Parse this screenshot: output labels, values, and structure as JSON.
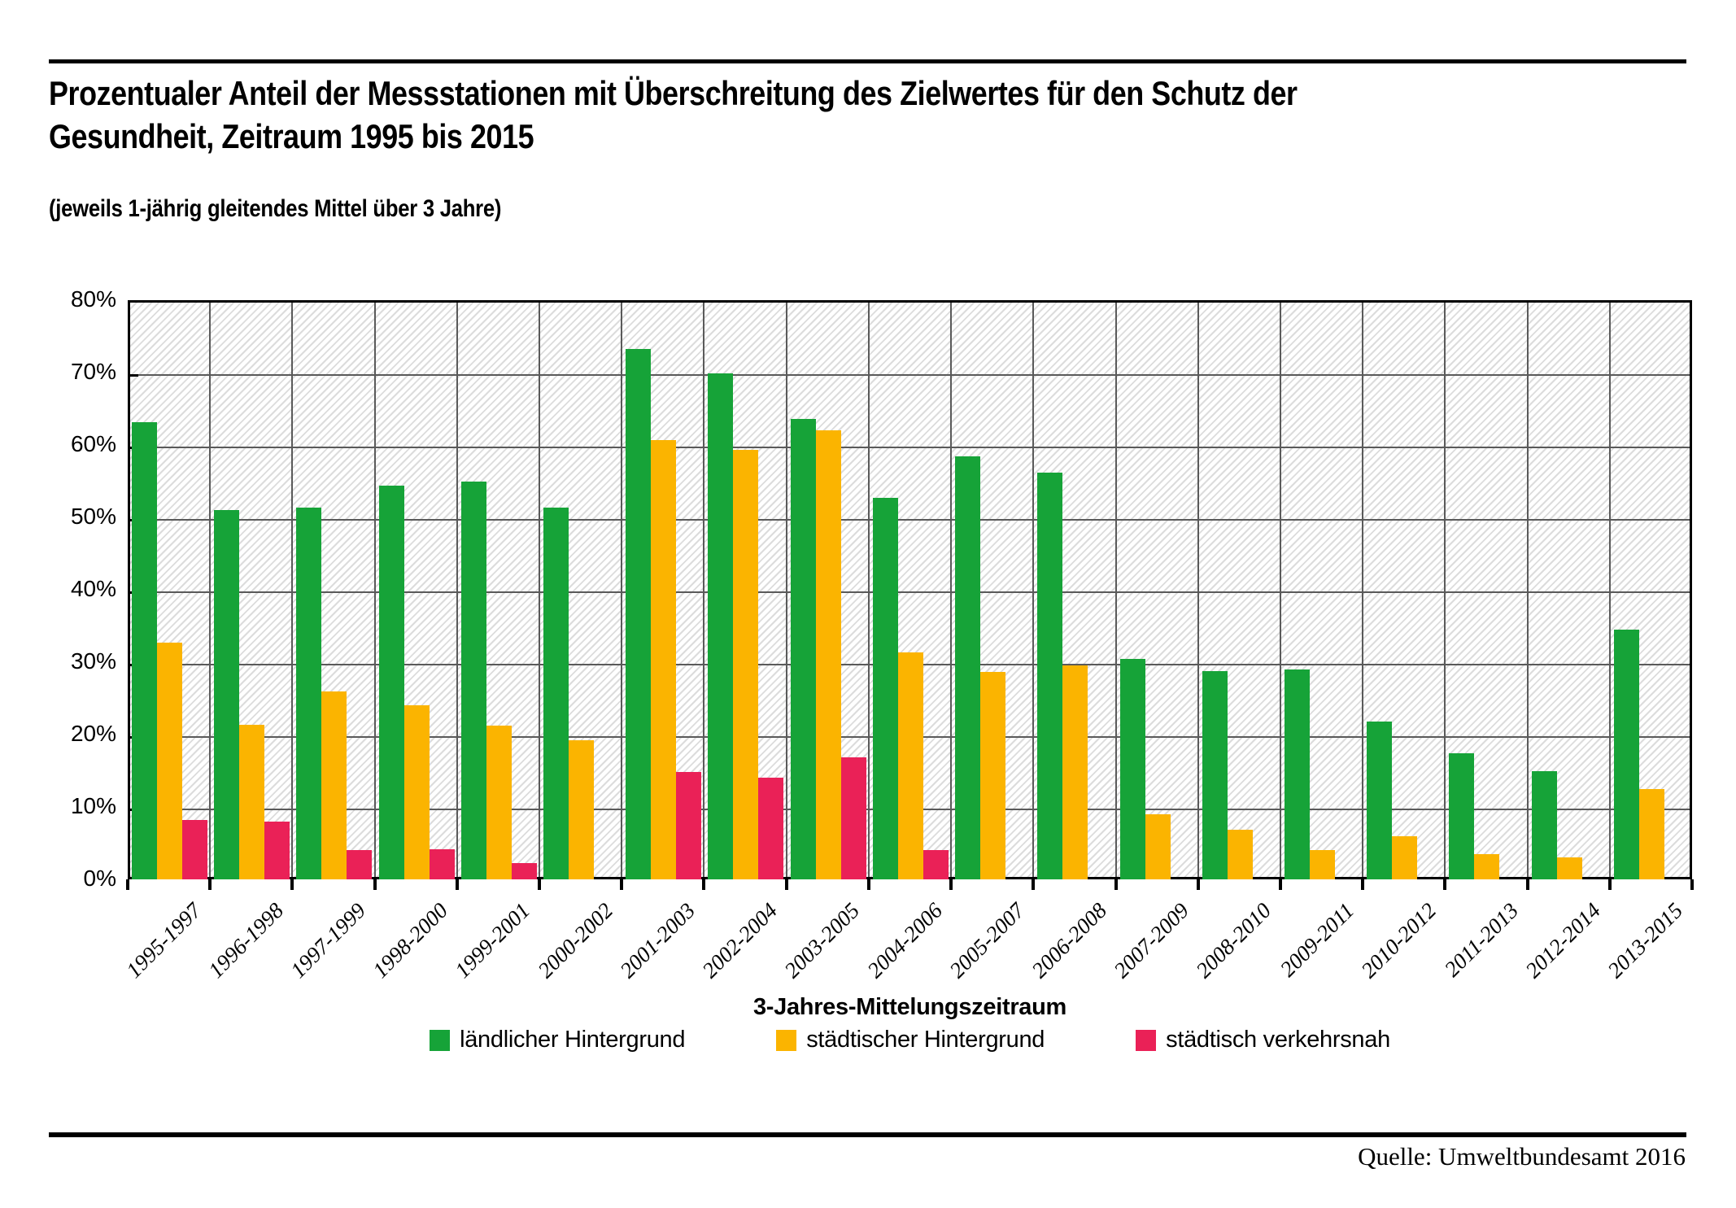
{
  "header": {
    "title_line1": "Prozentualer Anteil der Messstationen mit Überschreitung des Zielwertes für den Schutz der",
    "title_line2": "Gesundheit, Zeitraum 1995 bis 2015",
    "subtitle": "(jeweils 1-jährig gleitendes Mittel über 3 Jahre)"
  },
  "source": "Quelle: Umweltbundesamt 2016",
  "colors": {
    "grid": "#5a5a5a",
    "frame": "#000000",
    "hatch": "#dcdcdc",
    "green": "#16a338",
    "orange": "#fbb400",
    "pink": "#ea2157"
  },
  "chart_data": {
    "type": "bar",
    "title": "Prozentualer Anteil der Messstationen mit Überschreitung des Zielwertes für den Schutz der Gesundheit, Zeitraum 1995 bis 2015 (jeweils 1-jährig gleitendes Mittel über 3 Jahre)",
    "xlabel": "3-Jahres-Mittelungszeitraum",
    "ylabel": "",
    "ylim": [
      0,
      80
    ],
    "ytick_step": 10,
    "ytick_labels": [
      "0%",
      "10%",
      "20%",
      "30%",
      "40%",
      "50%",
      "60%",
      "70%",
      "80%"
    ],
    "grid": true,
    "hatch_background": true,
    "legend_position": "bottom",
    "categories": [
      "1995-1997",
      "1996-1998",
      "1997-1999",
      "1998-2000",
      "1999-2001",
      "2000-2002",
      "2001-2003",
      "2002-2004",
      "2003-2005",
      "2004-2006",
      "2005-2007",
      "2006-2008",
      "2007-2009",
      "2008-2010",
      "2009-2011",
      "2010-2012",
      "2011-2013",
      "2012-2014",
      "2013-2015"
    ],
    "series": [
      {
        "name": "ländlicher Hintergrund",
        "color": "#16a338",
        "values": [
          63.1,
          51.0,
          51.4,
          54.4,
          54.9,
          51.4,
          73.3,
          69.9,
          63.6,
          52.7,
          58.4,
          56.2,
          30.5,
          28.8,
          29.0,
          21.8,
          17.4,
          14.9,
          34.5
        ]
      },
      {
        "name": "städtischer Hintergrund",
        "color": "#fbb400",
        "values": [
          32.7,
          21.4,
          25.9,
          24.1,
          21.2,
          19.2,
          60.7,
          59.3,
          62.0,
          31.4,
          28.6,
          29.5,
          9.0,
          6.9,
          4.0,
          5.9,
          3.5,
          3.0,
          12.5
        ]
      },
      {
        "name": "städtisch verkehrsnah",
        "color": "#ea2157",
        "values": [
          8.2,
          8.0,
          4.0,
          4.2,
          2.2,
          0,
          14.8,
          14.0,
          16.8,
          4.0,
          0,
          0,
          0,
          0,
          0,
          0,
          0,
          0,
          0
        ]
      }
    ]
  }
}
